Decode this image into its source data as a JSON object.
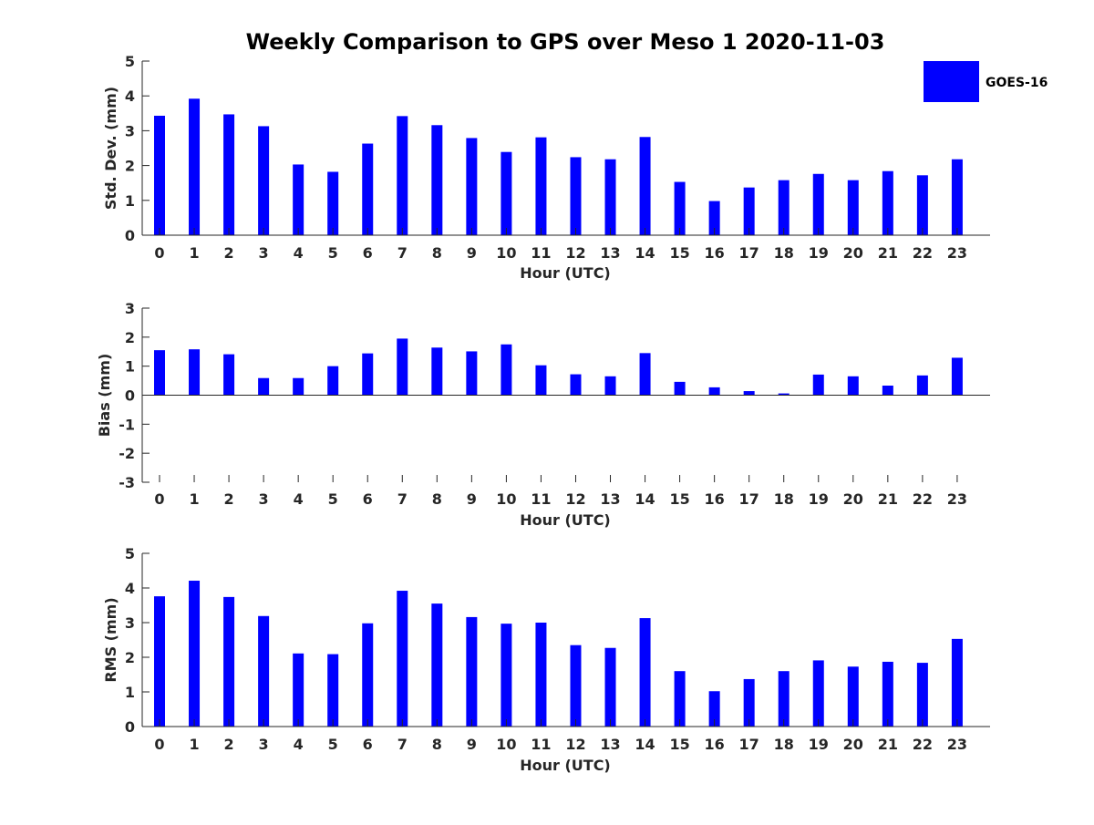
{
  "title": "Weekly Comparison to GPS over Meso 1 2020-11-03",
  "colors": {
    "bar": "#0000ff",
    "axis": "#262626"
  },
  "legend": {
    "label": "GOES-16",
    "placement": "top-right"
  },
  "chart_data": [
    {
      "type": "bar",
      "ylabel": "Std. Dev. (mm)",
      "xlabel": "Hour (UTC)",
      "categories": [
        "0",
        "1",
        "2",
        "3",
        "4",
        "5",
        "6",
        "7",
        "8",
        "9",
        "10",
        "11",
        "12",
        "13",
        "14",
        "15",
        "16",
        "17",
        "18",
        "19",
        "20",
        "21",
        "22",
        "23"
      ],
      "series": [
        {
          "name": "GOES-16",
          "values": [
            3.43,
            3.92,
            3.47,
            3.13,
            2.03,
            1.82,
            2.63,
            3.42,
            3.16,
            2.79,
            2.39,
            2.81,
            2.24,
            2.18,
            2.82,
            1.53,
            0.98,
            1.37,
            1.58,
            1.76,
            1.58,
            1.84,
            1.72,
            2.18
          ]
        }
      ],
      "ylim": [
        0,
        5
      ],
      "yticks": [
        "0",
        "1",
        "2",
        "3",
        "4",
        "5"
      ],
      "grid": false
    },
    {
      "type": "bar",
      "ylabel": "Bias (mm)",
      "xlabel": "Hour (UTC)",
      "categories": [
        "0",
        "1",
        "2",
        "3",
        "4",
        "5",
        "6",
        "7",
        "8",
        "9",
        "10",
        "11",
        "12",
        "13",
        "14",
        "15",
        "16",
        "17",
        "18",
        "19",
        "20",
        "21",
        "22",
        "23"
      ],
      "series": [
        {
          "name": "GOES-16",
          "values": [
            1.55,
            1.58,
            1.41,
            0.59,
            0.59,
            1.0,
            1.44,
            1.95,
            1.64,
            1.51,
            1.75,
            1.03,
            0.72,
            0.65,
            1.45,
            0.46,
            0.27,
            0.14,
            0.06,
            0.71,
            0.65,
            0.33,
            0.68,
            1.29
          ]
        }
      ],
      "ylim": [
        -3,
        3
      ],
      "yticks": [
        "-3",
        "-2",
        "-1",
        "0",
        "1",
        "2",
        "3"
      ],
      "grid": false
    },
    {
      "type": "bar",
      "ylabel": "RMS (mm)",
      "xlabel": "Hour (UTC)",
      "categories": [
        "0",
        "1",
        "2",
        "3",
        "4",
        "5",
        "6",
        "7",
        "8",
        "9",
        "10",
        "11",
        "12",
        "13",
        "14",
        "15",
        "16",
        "17",
        "18",
        "19",
        "20",
        "21",
        "22",
        "23"
      ],
      "series": [
        {
          "name": "GOES-16",
          "values": [
            3.76,
            4.21,
            3.74,
            3.19,
            2.11,
            2.09,
            2.98,
            3.92,
            3.55,
            3.16,
            2.97,
            3.0,
            2.35,
            2.27,
            3.13,
            1.6,
            1.02,
            1.37,
            1.6,
            1.91,
            1.73,
            1.87,
            1.84,
            2.53
          ]
        }
      ],
      "ylim": [
        0,
        5
      ],
      "yticks": [
        "0",
        "1",
        "2",
        "3",
        "4",
        "5"
      ],
      "grid": false
    }
  ]
}
